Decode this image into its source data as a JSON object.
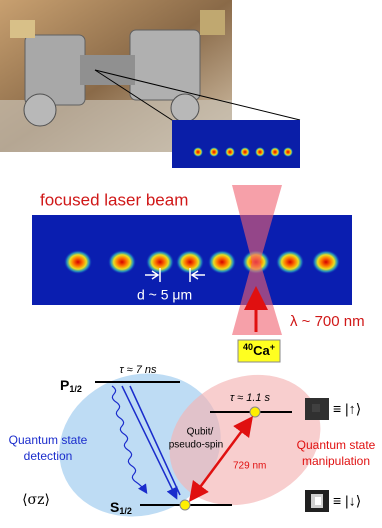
{
  "beam": {
    "label": "focused laser beam"
  },
  "spacing": {
    "label": "d ~ 5 μm"
  },
  "wavelength": {
    "label": "λ ~ 700 nm"
  },
  "ion": {
    "mass": "40",
    "element": "Ca",
    "charge": "+"
  },
  "levels": {
    "P": {
      "letter": "P",
      "subscript": "1/2",
      "lifetime": "τ ≈ 7 ns"
    },
    "S": {
      "letter": "S",
      "subscript": "1/2"
    },
    "D": {
      "lifetime": "τ ≈ 1.1 s"
    }
  },
  "qubit": {
    "line1": "Qubit/",
    "line2": "pseudo-spin"
  },
  "transition": {
    "label": "729 nm"
  },
  "detection": {
    "line1": "Quantum state",
    "line2": "detection",
    "observable": "⟨σz⟩"
  },
  "manipulation": {
    "line1": "Quantum state",
    "line2": "manipulation"
  },
  "states": {
    "up": "≡ |↑⟩",
    "down": "≡ |↓⟩"
  }
}
